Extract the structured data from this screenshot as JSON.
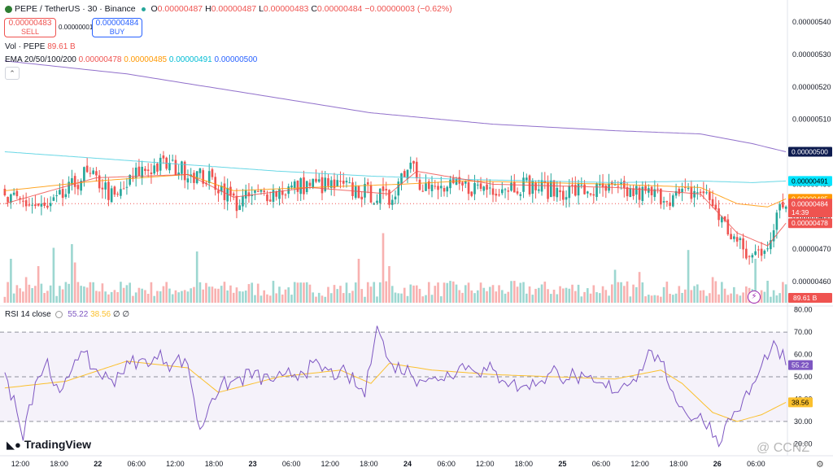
{
  "header": {
    "symbol": "PEPE / TetherUS · 30 · Binance",
    "o_label": "O",
    "o_val": "0.00000487",
    "h_label": "H",
    "h_val": "0.00000487",
    "l_label": "L",
    "l_val": "0.00000483",
    "c_label": "C",
    "c_val": "0.00000484",
    "change": "−0.00000003 (−0.62%)"
  },
  "trade": {
    "sell_price": "0.00000483",
    "sell_label": "SELL",
    "spread": "0.00000001",
    "buy_price": "0.00000484",
    "buy_label": "BUY"
  },
  "vol_legend": {
    "label": "Vol · PEPE",
    "value": "89.61 B"
  },
  "ema_legend": {
    "label": "EMA 20/50/100/200",
    "v20": "0.00000478",
    "v50": "0.00000485",
    "v100": "0.00000491",
    "v200": "0.00000500"
  },
  "rsi_legend": {
    "label": "RSI 14 close",
    "rsi": "55.22",
    "ma": "38.56",
    "n1": "∅",
    "n2": "∅"
  },
  "logo_text": "TradingView",
  "watermark": "@ CCNZ",
  "colors": {
    "up": "#26a69a",
    "down": "#ef5350",
    "ema20": "#ef5350",
    "ema50": "#ff9800",
    "ema100": "#4dd0e1",
    "ema200": "#7e57c2",
    "rsi": "#7e57c2",
    "rsi_ma": "#fbc02d"
  },
  "chart_data": [
    {
      "type": "candlestick",
      "title": "PEPE / TetherUS · 30 · Binance",
      "y_ticks": [
        "0.00000540",
        "0.00000530",
        "0.00000520",
        "0.00000510",
        "0.00000500",
        "0.00000490",
        "0.00000480",
        "0.00000470",
        "0.00000460"
      ],
      "ylim": [
        4.57e-06,
        5.43e-06
      ],
      "x_ticks": [
        "12:00",
        "18:00",
        "22",
        "06:00",
        "12:00",
        "18:00",
        "23",
        "06:00",
        "12:00",
        "18:00",
        "24",
        "06:00",
        "12:00",
        "18:00",
        "25",
        "06:00",
        "12:00",
        "18:00",
        "26",
        "06:00"
      ],
      "price_labels": [
        {
          "text": "0.00000500",
          "value": 5e-06,
          "color": "#0d1b4f"
        },
        {
          "text": "0.00000491",
          "value": 4.91e-06,
          "color": "#00e5ff"
        },
        {
          "text": "0.00000485",
          "value": 4.855e-06,
          "color": "#ff9800"
        },
        {
          "text": "0.00000484",
          "value": 4.84e-06,
          "color": "#ef5350"
        },
        {
          "text": "14:39",
          "value": 4.813e-06,
          "color": "#ef5350"
        },
        {
          "text": "0.00000478",
          "value": 4.78e-06,
          "color": "#ef5350"
        }
      ],
      "last_price": 4.84e-06,
      "close_anchors": [
        [
          0,
          4.85
        ],
        [
          8,
          4.84
        ],
        [
          14,
          4.82
        ],
        [
          20,
          4.87
        ],
        [
          26,
          4.93
        ],
        [
          32,
          4.9
        ],
        [
          36,
          4.85
        ],
        [
          44,
          4.94
        ],
        [
          52,
          4.96
        ],
        [
          60,
          4.94
        ],
        [
          68,
          4.91
        ],
        [
          72,
          4.88
        ],
        [
          76,
          4.84
        ],
        [
          80,
          4.86
        ],
        [
          90,
          4.88
        ],
        [
          100,
          4.9
        ],
        [
          110,
          4.89
        ],
        [
          120,
          4.87
        ],
        [
          126,
          4.85
        ],
        [
          130,
          4.93
        ],
        [
          134,
          4.98
        ],
        [
          136,
          4.91
        ],
        [
          140,
          4.88
        ],
        [
          150,
          4.89
        ],
        [
          160,
          4.89
        ],
        [
          170,
          4.9
        ],
        [
          180,
          4.88
        ],
        [
          190,
          4.88
        ],
        [
          200,
          4.88
        ],
        [
          210,
          4.87
        ],
        [
          220,
          4.86
        ],
        [
          228,
          4.88
        ],
        [
          232,
          4.84
        ],
        [
          236,
          4.77
        ],
        [
          240,
          4.72
        ],
        [
          244,
          4.67
        ],
        [
          248,
          4.7
        ],
        [
          252,
          4.75
        ],
        [
          254,
          4.83
        ],
        [
          256,
          4.84
        ]
      ],
      "ema20": [
        [
          0,
          4.84
        ],
        [
          30,
          4.92
        ],
        [
          60,
          4.93
        ],
        [
          75,
          4.86
        ],
        [
          100,
          4.89
        ],
        [
          126,
          4.87
        ],
        [
          135,
          4.94
        ],
        [
          160,
          4.9
        ],
        [
          200,
          4.89
        ],
        [
          228,
          4.87
        ],
        [
          240,
          4.75
        ],
        [
          250,
          4.71
        ],
        [
          256,
          4.78
        ]
      ],
      "ema50": [
        [
          0,
          4.88
        ],
        [
          30,
          4.91
        ],
        [
          60,
          4.93
        ],
        [
          75,
          4.88
        ],
        [
          100,
          4.89
        ],
        [
          130,
          4.9
        ],
        [
          150,
          4.91
        ],
        [
          200,
          4.9
        ],
        [
          228,
          4.89
        ],
        [
          240,
          4.84
        ],
        [
          250,
          4.83
        ],
        [
          256,
          4.855
        ]
      ],
      "ema100": [
        [
          0,
          5.0
        ],
        [
          30,
          4.98
        ],
        [
          60,
          4.96
        ],
        [
          90,
          4.94
        ],
        [
          120,
          4.925
        ],
        [
          150,
          4.915
        ],
        [
          200,
          4.905
        ],
        [
          228,
          4.91
        ],
        [
          245,
          4.905
        ],
        [
          256,
          4.91
        ]
      ],
      "ema200": [
        [
          0,
          5.28
        ],
        [
          40,
          5.24
        ],
        [
          80,
          5.18
        ],
        [
          120,
          5.12
        ],
        [
          160,
          5.085
        ],
        [
          200,
          5.065
        ],
        [
          228,
          5.055
        ],
        [
          245,
          5.025
        ],
        [
          256,
          5.0
        ]
      ]
    },
    {
      "type": "bar",
      "title": "Vol · PEPE",
      "last_value": "89.61 B",
      "spikes": [
        [
          2,
          0.6
        ],
        [
          7,
          0.35
        ],
        [
          11,
          0.5
        ],
        [
          16,
          0.75
        ],
        [
          22,
          0.8
        ],
        [
          23,
          0.55
        ],
        [
          63,
          0.7
        ],
        [
          116,
          0.6
        ],
        [
          124,
          0.95
        ],
        [
          126,
          0.5
        ],
        [
          200,
          0.45
        ],
        [
          208,
          0.42
        ],
        [
          224,
          0.72
        ],
        [
          232,
          0.35
        ],
        [
          246,
          0.6
        ],
        [
          250,
          0.3
        ]
      ]
    },
    {
      "type": "line",
      "title": "RSI 14 close",
      "y_ticks": [
        "80.00",
        "70.00",
        "60.00",
        "50.00",
        "40.00",
        "30.00",
        "20.00"
      ],
      "ylim": [
        19,
        81
      ],
      "bands": [
        30,
        50,
        70
      ],
      "rsi_anchors": [
        [
          0,
          50
        ],
        [
          6,
          26
        ],
        [
          10,
          48
        ],
        [
          14,
          57
        ],
        [
          18,
          40
        ],
        [
          24,
          62
        ],
        [
          28,
          55
        ],
        [
          34,
          48
        ],
        [
          40,
          55
        ],
        [
          50,
          58
        ],
        [
          60,
          56
        ],
        [
          64,
          25
        ],
        [
          68,
          42
        ],
        [
          80,
          52
        ],
        [
          90,
          48
        ],
        [
          100,
          55
        ],
        [
          112,
          50
        ],
        [
          118,
          42
        ],
        [
          122,
          75
        ],
        [
          126,
          55
        ],
        [
          132,
          52
        ],
        [
          140,
          48
        ],
        [
          150,
          55
        ],
        [
          160,
          52
        ],
        [
          170,
          45
        ],
        [
          180,
          52
        ],
        [
          190,
          48
        ],
        [
          200,
          44
        ],
        [
          208,
          52
        ],
        [
          212,
          63
        ],
        [
          216,
          52
        ],
        [
          222,
          35
        ],
        [
          226,
          32
        ],
        [
          230,
          29
        ],
        [
          234,
          21
        ],
        [
          238,
          32
        ],
        [
          242,
          38
        ],
        [
          246,
          48
        ],
        [
          250,
          60
        ],
        [
          253,
          62
        ],
        [
          256,
          55.22
        ]
      ],
      "ma_anchors": [
        [
          0,
          45
        ],
        [
          20,
          48
        ],
        [
          40,
          57
        ],
        [
          60,
          54
        ],
        [
          70,
          43
        ],
        [
          90,
          50
        ],
        [
          110,
          53
        ],
        [
          120,
          47
        ],
        [
          126,
          56
        ],
        [
          140,
          53
        ],
        [
          160,
          51
        ],
        [
          180,
          50
        ],
        [
          200,
          49
        ],
        [
          215,
          53
        ],
        [
          222,
          47
        ],
        [
          232,
          34
        ],
        [
          240,
          30
        ],
        [
          248,
          33
        ],
        [
          256,
          38.56
        ]
      ],
      "value_labels": [
        {
          "text": "55.22",
          "value": 55.22
        },
        {
          "text": "38.56",
          "value": 38.56
        }
      ]
    }
  ]
}
